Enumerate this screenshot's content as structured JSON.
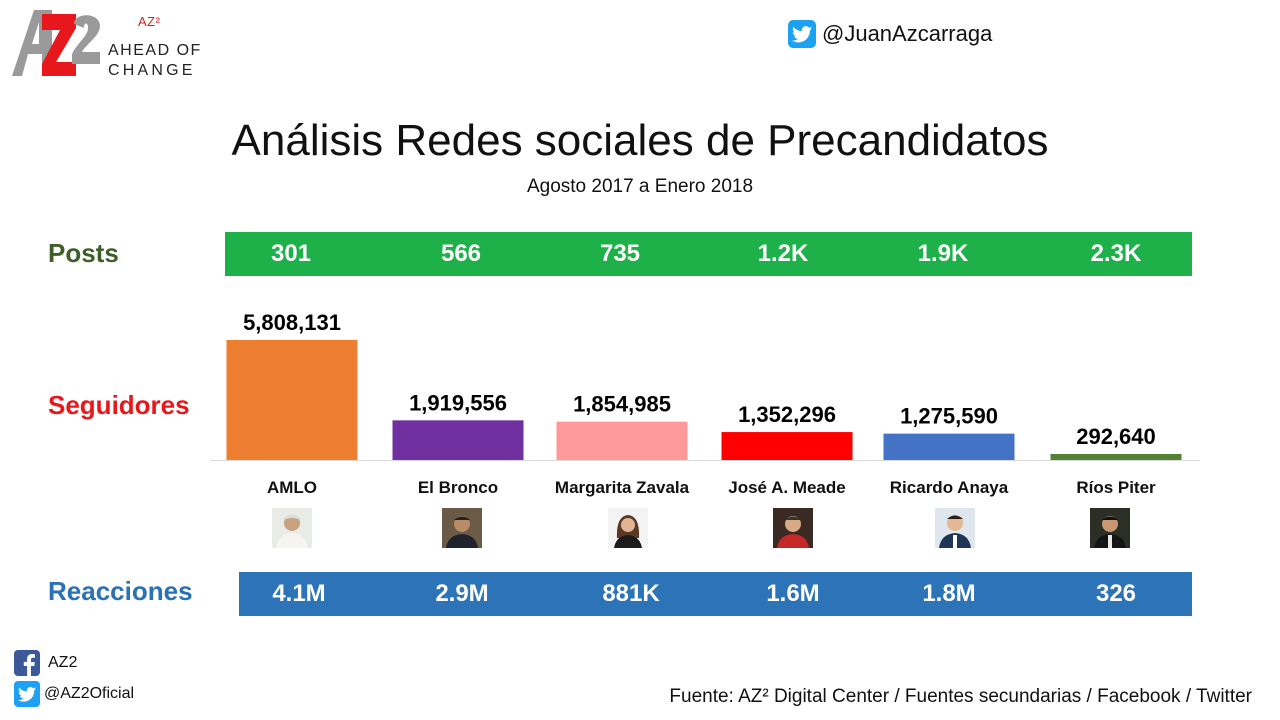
{
  "logo": {
    "superscript": "AZ²",
    "line1": "AHEAD OF",
    "line2": "CHANGE"
  },
  "header": {
    "twitter_handle": "@JuanAzcarraga"
  },
  "title": "Análisis Redes sociales de Precandidatos",
  "subtitle": "Agosto 2017 a Enero 2018",
  "rows": {
    "posts_label": "Posts",
    "followers_label": "Seguidores",
    "reactions_label": "Reacciones"
  },
  "posts": [
    "301",
    "566",
    "735",
    "1.2K",
    "1.9K",
    "2.3K"
  ],
  "reactions": [
    "4.1M",
    "2.9M",
    "881K",
    "1.6M",
    "1.8M",
    "326"
  ],
  "colors": {
    "posts_band": "#1eb14a",
    "reactions_band": "#2d73b7",
    "posts_label": "#3e5e2a",
    "followers_label": "#e8171b",
    "reactions_label": "#2a71b5"
  },
  "chart_data": {
    "type": "bar",
    "title": "",
    "xlabel": "",
    "ylabel": "",
    "categories": [
      "AMLO",
      "El Bronco",
      "Margarita Zavala",
      "José A. Meade",
      "Ricardo Anaya",
      "Ríos Piter"
    ],
    "values": [
      5808131,
      1919556,
      1854985,
      1352296,
      1275590,
      292640
    ],
    "data_labels": [
      "5,808,131",
      "1,919,556",
      "1,854,985",
      "1,352,296",
      "1,275,590",
      "292,640"
    ],
    "bar_colors": [
      "#ed7d31",
      "#7030a0",
      "#ff9999",
      "#ff0000",
      "#4472c4",
      "#548235"
    ],
    "ylim": [
      0,
      5808131
    ],
    "grid": false,
    "legend": "none"
  },
  "footer": {
    "facebook": "AZ2",
    "twitter": "@AZ2Oficial",
    "source": "Fuente: AZ² Digital Center / Fuentes secundarias / Facebook / Twitter"
  }
}
